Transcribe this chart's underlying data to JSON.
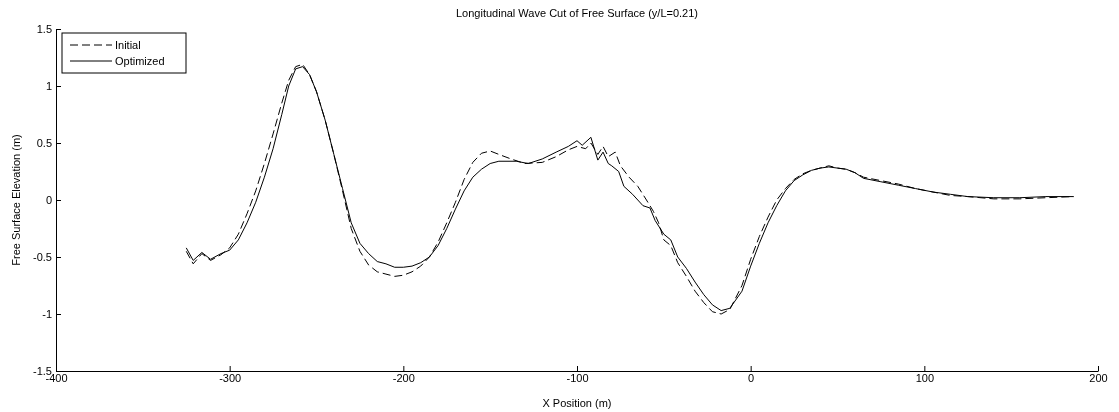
{
  "chart_data": {
    "type": "line",
    "title": "Longitudinal Wave Cut of Free Surface (y/L=0.21)",
    "xlabel": "X Position (m)",
    "ylabel": "Free Surface Elevation (m)",
    "xlim": [
      -400,
      200
    ],
    "xticks": [
      -400,
      -300,
      -200,
      -100,
      0,
      100,
      200
    ],
    "ylim": [
      -1.5,
      1.5
    ],
    "yticks": [
      -1.5,
      -1,
      -0.5,
      0,
      0.5,
      1,
      1.5
    ],
    "grid": false,
    "legend": "top left",
    "marker": "none",
    "series": [
      {
        "name": "Initial",
        "color": "#000000",
        "line_style": "dashed",
        "x": [
          -325,
          -321,
          -316,
          -311,
          -305,
          -300,
          -295,
          -290,
          -285,
          -280,
          -275,
          -270,
          -266,
          -262,
          -258,
          -254,
          -250,
          -245,
          -240,
          -235,
          -230,
          -225,
          -220,
          -215,
          -210,
          -205,
          -200,
          -195,
          -190,
          -185,
          -180,
          -175,
          -170,
          -165,
          -160,
          -155,
          -150,
          -145,
          -138,
          -130,
          -120,
          -112,
          -105,
          -100,
          -95,
          -92,
          -88,
          -85,
          -82,
          -78,
          -75,
          -70,
          -65,
          -60,
          -56,
          -53,
          -50,
          -46,
          -42,
          -37,
          -32,
          -27,
          -22,
          -17,
          -12,
          -5,
          0,
          5,
          10,
          15,
          20,
          25,
          30,
          35,
          40,
          45,
          50,
          55,
          60,
          65,
          75,
          85,
          95,
          105,
          115,
          125,
          140,
          155,
          170,
          186
        ],
        "values": [
          -0.45,
          -0.56,
          -0.47,
          -0.53,
          -0.48,
          -0.42,
          -0.3,
          -0.12,
          0.08,
          0.32,
          0.58,
          0.85,
          1.05,
          1.17,
          1.19,
          1.1,
          0.95,
          0.7,
          0.4,
          0.08,
          -0.25,
          -0.45,
          -0.57,
          -0.63,
          -0.65,
          -0.67,
          -0.66,
          -0.63,
          -0.58,
          -0.5,
          -0.37,
          -0.2,
          -0.02,
          0.18,
          0.33,
          0.41,
          0.43,
          0.4,
          0.36,
          0.32,
          0.33,
          0.38,
          0.44,
          0.47,
          0.45,
          0.5,
          0.4,
          0.47,
          0.38,
          0.42,
          0.3,
          0.2,
          0.12,
          0.0,
          -0.1,
          -0.2,
          -0.35,
          -0.4,
          -0.55,
          -0.67,
          -0.8,
          -0.9,
          -0.98,
          -1.0,
          -0.96,
          -0.75,
          -0.52,
          -0.32,
          -0.15,
          0.0,
          0.1,
          0.18,
          0.23,
          0.26,
          0.28,
          0.3,
          0.28,
          0.27,
          0.24,
          0.2,
          0.17,
          0.14,
          0.1,
          0.07,
          0.04,
          0.03,
          0.01,
          0.01,
          0.02,
          0.03
        ]
      },
      {
        "name": "Optimized",
        "color": "#000000",
        "line_style": "solid",
        "x": [
          -325,
          -321,
          -316,
          -311,
          -305,
          -300,
          -295,
          -290,
          -285,
          -280,
          -275,
          -270,
          -266,
          -262,
          -258,
          -254,
          -250,
          -245,
          -240,
          -235,
          -230,
          -225,
          -220,
          -215,
          -210,
          -205,
          -200,
          -195,
          -190,
          -185,
          -180,
          -175,
          -170,
          -165,
          -160,
          -155,
          -150,
          -145,
          -135,
          -128,
          -120,
          -112,
          -105,
          -100,
          -97,
          -92,
          -88,
          -85,
          -82,
          -80,
          -76,
          -73,
          -68,
          -62,
          -58,
          -55,
          -50,
          -46,
          -42,
          -37,
          -32,
          -27,
          -22,
          -17,
          -12,
          -5,
          0,
          5,
          10,
          15,
          20,
          25,
          30,
          35,
          40,
          45,
          50,
          55,
          60,
          65,
          75,
          85,
          95,
          105,
          115,
          125,
          140,
          155,
          170,
          186
        ],
        "values": [
          -0.42,
          -0.53,
          -0.46,
          -0.52,
          -0.47,
          -0.44,
          -0.35,
          -0.2,
          -0.02,
          0.2,
          0.45,
          0.75,
          1.0,
          1.15,
          1.17,
          1.1,
          0.95,
          0.7,
          0.4,
          0.1,
          -0.2,
          -0.38,
          -0.47,
          -0.54,
          -0.56,
          -0.59,
          -0.59,
          -0.58,
          -0.55,
          -0.5,
          -0.4,
          -0.25,
          -0.08,
          0.08,
          0.2,
          0.27,
          0.32,
          0.34,
          0.34,
          0.32,
          0.36,
          0.42,
          0.47,
          0.52,
          0.48,
          0.55,
          0.35,
          0.42,
          0.32,
          0.3,
          0.25,
          0.12,
          0.05,
          -0.05,
          -0.07,
          -0.18,
          -0.3,
          -0.35,
          -0.5,
          -0.6,
          -0.72,
          -0.83,
          -0.92,
          -0.97,
          -0.95,
          -0.8,
          -0.58,
          -0.38,
          -0.2,
          -0.05,
          0.08,
          0.17,
          0.22,
          0.26,
          0.28,
          0.29,
          0.28,
          0.27,
          0.24,
          0.19,
          0.16,
          0.13,
          0.1,
          0.07,
          0.05,
          0.03,
          0.02,
          0.02,
          0.03,
          0.03
        ]
      }
    ]
  }
}
